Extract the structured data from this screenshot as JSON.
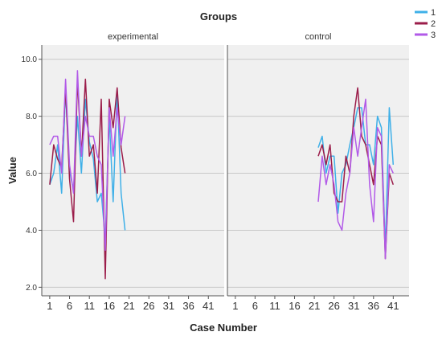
{
  "chart_data": {
    "type": "line",
    "title": "Groups",
    "xlabel": "Case Number",
    "ylabel": "Value",
    "xlim": [
      -1,
      45
    ],
    "ylim": [
      1.7,
      10.5
    ],
    "xticks": [
      1,
      6,
      11,
      16,
      21,
      26,
      31,
      36,
      41
    ],
    "xtick_labels": [
      "1",
      "6",
      "11",
      "16",
      "21",
      "26",
      "31",
      "36",
      "41"
    ],
    "yticks": [
      2,
      4,
      6,
      8,
      10
    ],
    "ytick_labels": [
      "2.0",
      "4.0",
      "6.0",
      "8.0",
      "10.0"
    ],
    "grid": true,
    "legend": {
      "position": "top-right",
      "entries": [
        "1",
        "2",
        "3"
      ]
    },
    "series_colors": {
      "1": "#3fb0e8",
      "2": "#9b1d4a",
      "3": "#b25ae8"
    },
    "panels": [
      {
        "label": "experimental",
        "series": [
          {
            "name": "1",
            "x": [
              1,
              2,
              3,
              4,
              5,
              6,
              7,
              8,
              9,
              10,
              11,
              12,
              13,
              14,
              15,
              16,
              17,
              18,
              19,
              20,
              21
            ],
            "y": [
              5.6,
              6.0,
              7.0,
              5.3,
              8.9,
              6.1,
              5.4,
              8.0,
              6.0,
              8.6,
              7.1,
              6.5,
              5.0,
              5.3,
              3.7,
              8.0,
              5.0,
              8.9,
              5.3,
              4.0,
              null
            ]
          },
          {
            "name": "2",
            "x": [
              1,
              2,
              3,
              4,
              5,
              6,
              7,
              8,
              9,
              10,
              11,
              12,
              13,
              14,
              15,
              16,
              17,
              18,
              19,
              20,
              21
            ],
            "y": [
              5.6,
              7.0,
              6.5,
              6.2,
              9.0,
              5.8,
              4.3,
              9.3,
              6.6,
              9.3,
              6.6,
              7.0,
              5.3,
              8.6,
              2.3,
              8.6,
              7.6,
              9.0,
              6.9,
              6.0,
              null
            ]
          },
          {
            "name": "3",
            "x": [
              1,
              2,
              3,
              4,
              5,
              6,
              7,
              8,
              9,
              10,
              11,
              12,
              13,
              14,
              15,
              16,
              17,
              18,
              19,
              20,
              21
            ],
            "y": [
              7.0,
              7.3,
              7.3,
              6.0,
              9.3,
              6.3,
              5.3,
              9.6,
              6.6,
              8.0,
              7.3,
              7.3,
              6.6,
              6.3,
              3.3,
              8.3,
              6.6,
              8.3,
              7.0,
              8.0,
              null
            ]
          }
        ]
      },
      {
        "label": "control",
        "series": [
          {
            "name": "1",
            "x": [
              21,
              22,
              23,
              24,
              25,
              26,
              27,
              28,
              29,
              30,
              31,
              32,
              33,
              34,
              35,
              36,
              37,
              38,
              39,
              40,
              41,
              42
            ],
            "y": [
              null,
              6.9,
              7.3,
              6.0,
              6.6,
              6.6,
              4.6,
              6.0,
              6.3,
              7.0,
              7.6,
              8.3,
              8.3,
              7.0,
              7.0,
              6.3,
              8.0,
              7.6,
              3.3,
              8.3,
              6.3,
              null
            ]
          },
          {
            "name": "2",
            "x": [
              21,
              22,
              23,
              24,
              25,
              26,
              27,
              28,
              29,
              30,
              31,
              32,
              33,
              34,
              35,
              36,
              37,
              38,
              39,
              40,
              41,
              42
            ],
            "y": [
              null,
              6.6,
              7.0,
              6.3,
              7.0,
              5.3,
              5.0,
              5.0,
              6.6,
              6.0,
              8.0,
              9.0,
              7.3,
              7.0,
              6.3,
              5.6,
              7.3,
              7.0,
              3.0,
              6.0,
              5.6,
              null
            ]
          },
          {
            "name": "3",
            "x": [
              21,
              22,
              23,
              24,
              25,
              26,
              27,
              28,
              29,
              30,
              31,
              32,
              33,
              34,
              35,
              36,
              37,
              38,
              39,
              40,
              41,
              42
            ],
            "y": [
              null,
              5.0,
              6.6,
              5.6,
              6.3,
              5.6,
              4.3,
              4.0,
              5.3,
              6.0,
              7.6,
              6.6,
              7.6,
              8.6,
              5.6,
              4.3,
              7.6,
              7.3,
              3.0,
              6.3,
              6.0,
              null
            ]
          }
        ]
      }
    ]
  }
}
